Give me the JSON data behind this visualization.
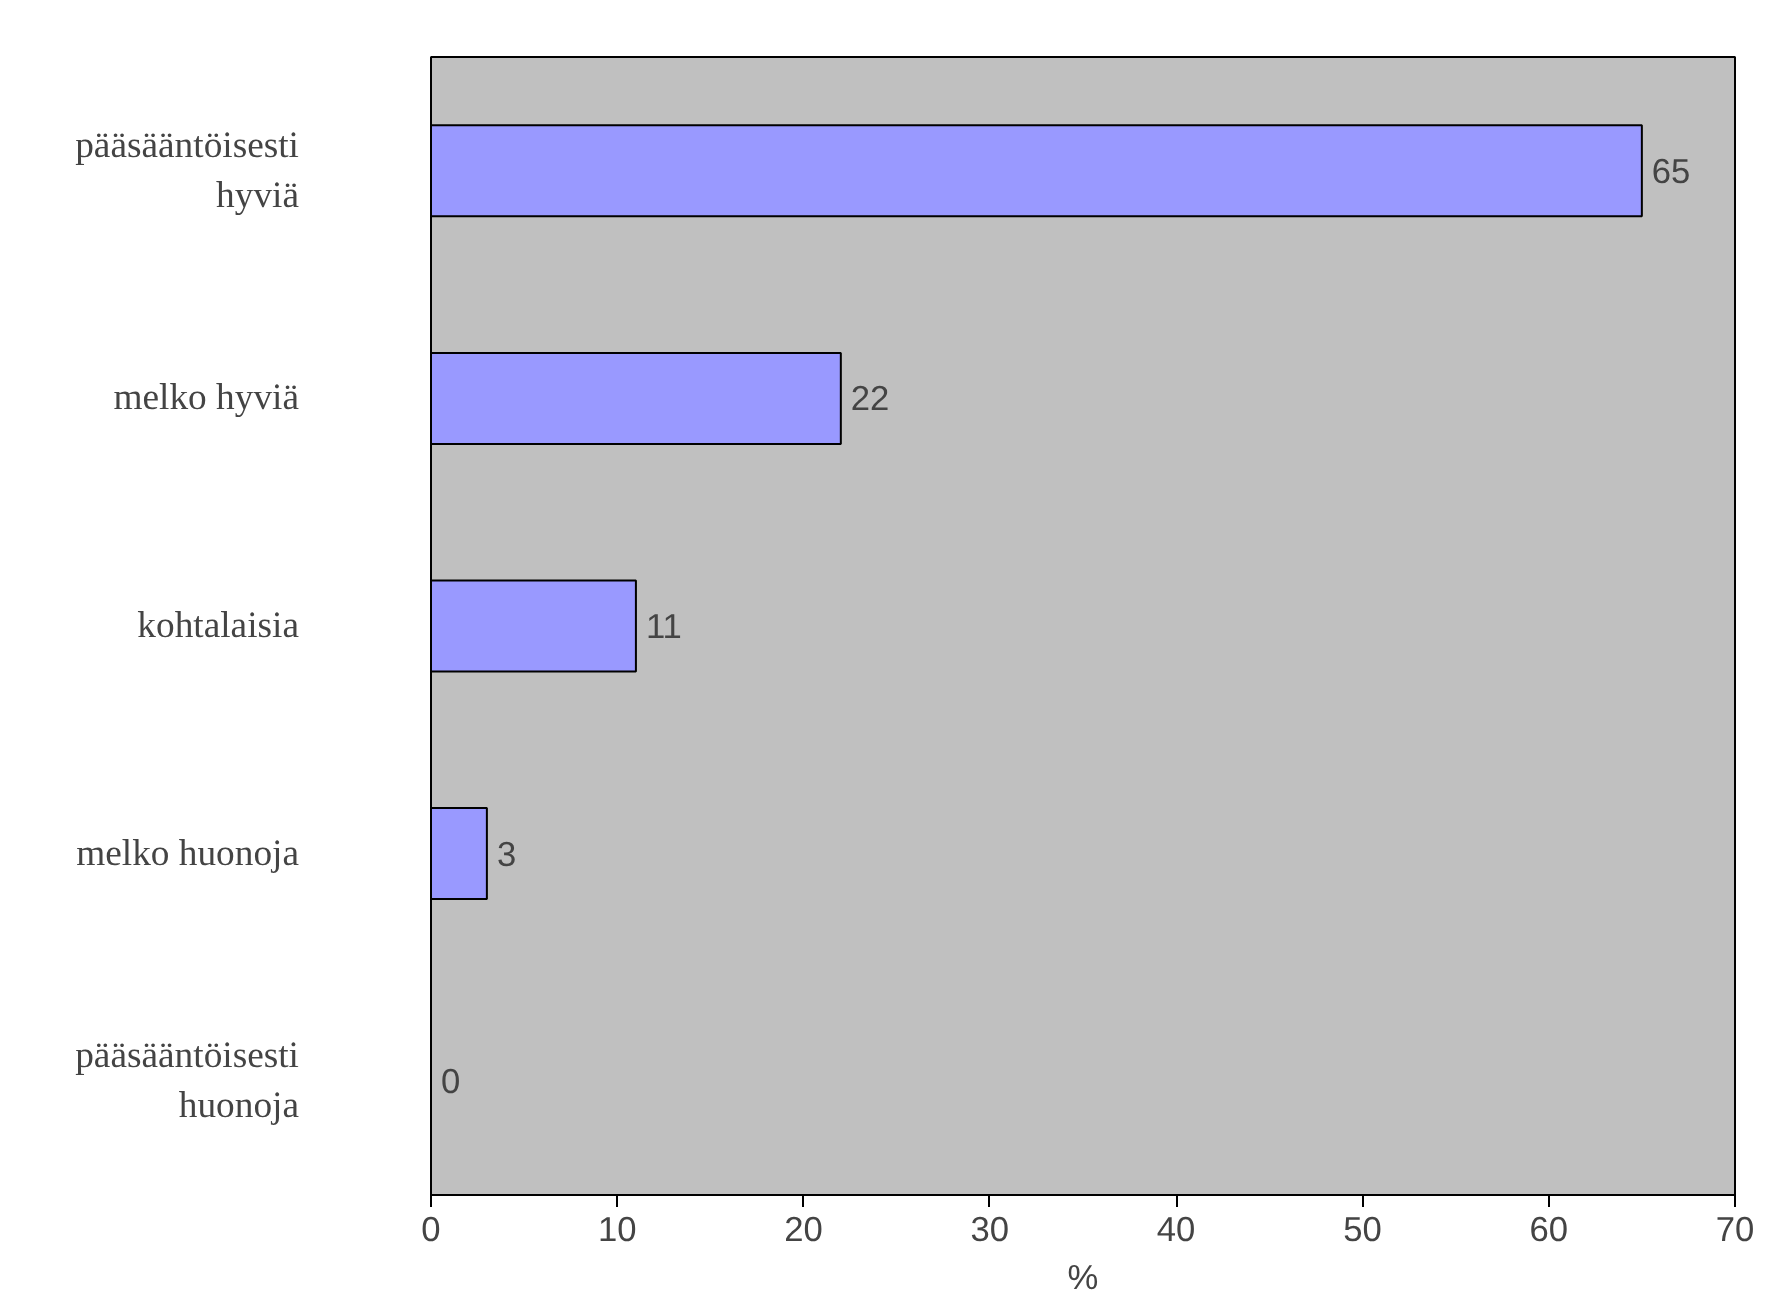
{
  "chart_data": {
    "type": "bar",
    "orientation": "horizontal",
    "xlabel": "%",
    "categories": [
      "pääsääntöisesti\nhyviä",
      "melko hyviä",
      "kohtalaisia",
      "melko huonoja",
      "pääsääntöisesti\nhuonoja"
    ],
    "values": [
      65,
      22,
      11,
      3,
      0
    ],
    "color": "#9999ff",
    "xlim": [
      0,
      70
    ],
    "xticks": [
      0,
      10,
      20,
      30,
      40,
      50,
      60,
      70
    ],
    "data_labels": true,
    "grid": false
  }
}
